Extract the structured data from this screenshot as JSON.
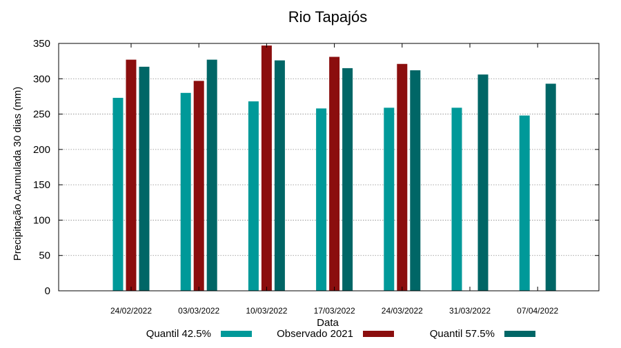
{
  "chart_data": {
    "type": "bar",
    "title": "Rio Tapajós",
    "xlabel": "Data",
    "ylabel": "Precipitação Acumulada 30 dias (mm)",
    "ylim": [
      0,
      350
    ],
    "yticks": [
      0,
      50,
      100,
      150,
      200,
      250,
      300,
      350
    ],
    "grid": "horizontal dotted",
    "legend_position": "bottom",
    "categories": [
      "24/02/2022",
      "03/03/2022",
      "10/03/2022",
      "17/03/2022",
      "24/03/2022",
      "31/03/2022",
      "07/04/2022"
    ],
    "series": [
      {
        "name": "Quantil 42.5%",
        "color": "#009999",
        "values": [
          273,
          280,
          268,
          258,
          259,
          259,
          248
        ]
      },
      {
        "name": "Observado 2021",
        "color": "#8b0e0e",
        "values": [
          327,
          297,
          347,
          331,
          321,
          null,
          null
        ]
      },
      {
        "name": "Quantil 57.5%",
        "color": "#006666",
        "values": [
          317,
          327,
          326,
          315,
          312,
          306,
          293
        ]
      }
    ]
  }
}
